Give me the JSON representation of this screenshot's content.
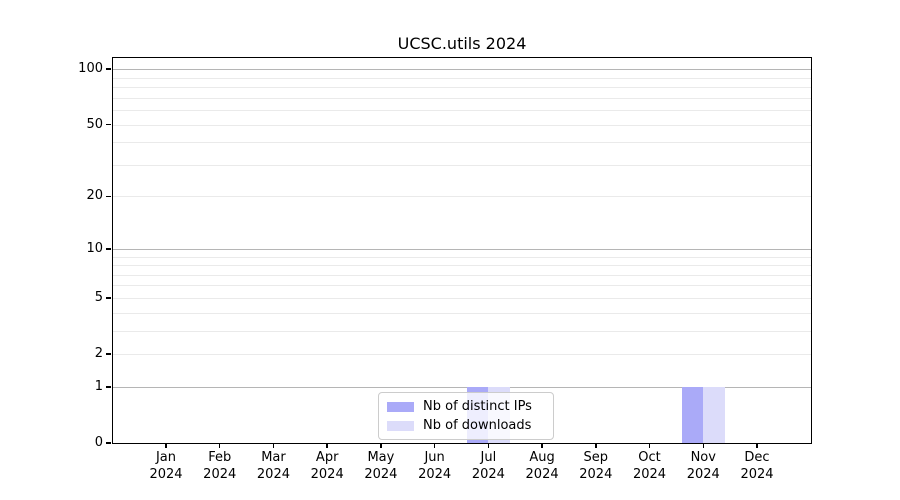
{
  "chart_data": {
    "type": "bar",
    "title": "UCSC.utils 2024",
    "months": [
      "Jan",
      "Feb",
      "Mar",
      "Apr",
      "May",
      "Jun",
      "Jul",
      "Aug",
      "Sep",
      "Oct",
      "Nov",
      "Dec"
    ],
    "year_label": "2024",
    "series": [
      {
        "name": "Nb of distinct IPs",
        "color": "#aaaaf8",
        "values": [
          0,
          0,
          0,
          0,
          0,
          0,
          1,
          0,
          0,
          0,
          1,
          0
        ]
      },
      {
        "name": "Nb of downloads",
        "color": "#dcdcfa",
        "values": [
          0,
          0,
          0,
          0,
          0,
          0,
          1,
          0,
          0,
          0,
          1,
          0
        ]
      }
    ],
    "y_scale": "log1p",
    "ylim": [
      0,
      115
    ],
    "y_tick_values": [
      0,
      1,
      2,
      5,
      10,
      20,
      50,
      100
    ],
    "y_major_gridlines": [
      1,
      10,
      100
    ],
    "y_minor_gridlines": [
      2,
      3,
      4,
      5,
      6,
      7,
      8,
      9,
      20,
      30,
      40,
      50,
      60,
      70,
      80,
      90
    ],
    "grid_color_major": "#b5b5b5",
    "grid_color_minor": "#eaeaea",
    "legend_position": "bottom-center",
    "grid": "on"
  }
}
